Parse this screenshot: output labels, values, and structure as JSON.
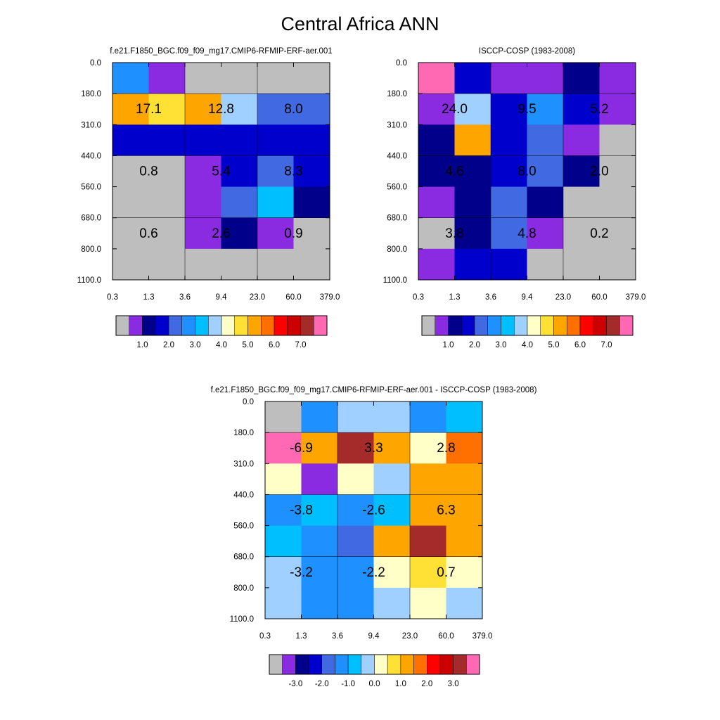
{
  "title": "Central Africa ANN",
  "chart_data": [
    {
      "type": "heatmap",
      "title": "f.e21.F1850_BGC.f09_f09_mg17.CMIP6-RFMIP-ERF-aer.001",
      "x_ticks": [
        "0.3",
        "1.3",
        "3.6",
        "9.4",
        "23.0",
        "60.0",
        "379.0"
      ],
      "y_ticks": [
        "0.0",
        "180.0",
        "310.0",
        "440.0",
        "560.0",
        "680.0",
        "800.0",
        "1100.0"
      ],
      "cell_colors": [
        [
          "#1E90FF",
          "#8A2BE2",
          "#BEBEBE",
          "#BEBEBE",
          "#BEBEBE",
          "#BEBEBE"
        ],
        [
          "#FFA500",
          "#FFE135",
          "#FFA500",
          "#A0D0FF",
          "#4169E1",
          "#4169E1"
        ],
        [
          "#0000CD",
          "#0000CD",
          "#0000CD",
          "#0000CD",
          "#0000CD",
          "#0000CD"
        ],
        [
          "#BEBEBE",
          "#BEBEBE",
          "#8A2BE2",
          "#0000CD",
          "#4169E1",
          "#0000CD"
        ],
        [
          "#BEBEBE",
          "#BEBEBE",
          "#8A2BE2",
          "#4169E1",
          "#00BFFF",
          "#00008B"
        ],
        [
          "#BEBEBE",
          "#BEBEBE",
          "#8A2BE2",
          "#00008B",
          "#8A2BE2",
          "#BEBEBE"
        ],
        [
          "#BEBEBE",
          "#BEBEBE",
          "#BEBEBE",
          "#BEBEBE",
          "#BEBEBE",
          "#BEBEBE"
        ]
      ],
      "annotations": [
        {
          "col": 1,
          "row": 1,
          "text": "17.1"
        },
        {
          "col": 3,
          "row": 1,
          "text": "12.8"
        },
        {
          "col": 5,
          "row": 1,
          "text": "8.0"
        },
        {
          "col": 1,
          "row": 3,
          "text": "0.8"
        },
        {
          "col": 3,
          "row": 3,
          "text": "5.4"
        },
        {
          "col": 5,
          "row": 3,
          "text": "8.3"
        },
        {
          "col": 1,
          "row": 5,
          "text": "0.6"
        },
        {
          "col": 3,
          "row": 5,
          "text": "2.6"
        },
        {
          "col": 5,
          "row": 5,
          "text": "0.9"
        }
      ],
      "colorbar": {
        "colors": [
          "#BEBEBE",
          "#8A2BE2",
          "#00008B",
          "#0000CD",
          "#4169E1",
          "#1E90FF",
          "#00BFFF",
          "#A0D0FF",
          "#FFFFC8",
          "#FFE135",
          "#FFA500",
          "#FF7000",
          "#FF0000",
          "#CD0000",
          "#A52A2A",
          "#FF69B4"
        ],
        "labels": [
          "1.0",
          "2.0",
          "3.0",
          "4.0",
          "5.0",
          "6.0",
          "7.0"
        ]
      }
    },
    {
      "type": "heatmap",
      "title": "ISCCP-COSP (1983-2008)",
      "x_ticks": [
        "0.3",
        "1.3",
        "3.6",
        "9.4",
        "23.0",
        "60.0",
        "379.0"
      ],
      "y_ticks": [
        "0.0",
        "180.0",
        "310.0",
        "440.0",
        "560.0",
        "680.0",
        "800.0",
        "1100.0"
      ],
      "cell_colors": [
        [
          "#FF69B4",
          "#0000CD",
          "#8A2BE2",
          "#8A2BE2",
          "#00008B",
          "#8A2BE2"
        ],
        [
          "#8A2BE2",
          "#A0D0FF",
          "#0000CD",
          "#1E90FF",
          "#0000CD",
          "#8A2BE2"
        ],
        [
          "#00008B",
          "#FFA500",
          "#0000CD",
          "#4169E1",
          "#8A2BE2",
          "#BEBEBE"
        ],
        [
          "#00008B",
          "#00008B",
          "#0000CD",
          "#4169E1",
          "#00008B",
          "#BEBEBE"
        ],
        [
          "#8A2BE2",
          "#00008B",
          "#4169E1",
          "#00008B",
          "#BEBEBE",
          "#BEBEBE"
        ],
        [
          "#BEBEBE",
          "#00008B",
          "#4169E1",
          "#8A2BE2",
          "#BEBEBE",
          "#BEBEBE"
        ],
        [
          "#8A2BE2",
          "#0000CD",
          "#0000CD",
          "#BEBEBE",
          "#BEBEBE",
          "#BEBEBE"
        ]
      ],
      "annotations": [
        {
          "col": 1,
          "row": 1,
          "text": "24.0"
        },
        {
          "col": 3,
          "row": 1,
          "text": "9.5"
        },
        {
          "col": 5,
          "row": 1,
          "text": "5.2"
        },
        {
          "col": 1,
          "row": 3,
          "text": "4.6"
        },
        {
          "col": 3,
          "row": 3,
          "text": "8.0"
        },
        {
          "col": 5,
          "row": 3,
          "text": "2.0"
        },
        {
          "col": 1,
          "row": 5,
          "text": "3.8"
        },
        {
          "col": 3,
          "row": 5,
          "text": "4.8"
        },
        {
          "col": 5,
          "row": 5,
          "text": "0.2"
        }
      ],
      "colorbar": {
        "colors": [
          "#BEBEBE",
          "#8A2BE2",
          "#00008B",
          "#0000CD",
          "#4169E1",
          "#1E90FF",
          "#00BFFF",
          "#A0D0FF",
          "#FFFFC8",
          "#FFE135",
          "#FFA500",
          "#FF7000",
          "#FF0000",
          "#CD0000",
          "#A52A2A",
          "#FF69B4"
        ],
        "labels": [
          "1.0",
          "2.0",
          "3.0",
          "4.0",
          "5.0",
          "6.0",
          "7.0"
        ]
      }
    },
    {
      "type": "heatmap",
      "title": "f.e21.F1850_BGC.f09_f09_mg17.CMIP6-RFMIP-ERF-aer.001 - ISCCP-COSP (1983-2008)",
      "x_ticks": [
        "0.3",
        "1.3",
        "3.6",
        "9.4",
        "23.0",
        "60.0",
        "379.0"
      ],
      "y_ticks": [
        "0.0",
        "180.0",
        "310.0",
        "440.0",
        "560.0",
        "680.0",
        "800.0",
        "1100.0"
      ],
      "cell_colors": [
        [
          "#BEBEBE",
          "#1E90FF",
          "#A0D0FF",
          "#A0D0FF",
          "#1E90FF",
          "#00BFFF"
        ],
        [
          "#FF69B4",
          "#FFA500",
          "#A52A2A",
          "#FFA500",
          "#FFFFC8",
          "#FF7000"
        ],
        [
          "#FFFFC8",
          "#8A2BE2",
          "#FFFFC8",
          "#A0D0FF",
          "#FFA500",
          "#FFA500"
        ],
        [
          "#1E90FF",
          "#00BFFF",
          "#1E90FF",
          "#00BFFF",
          "#FFA500",
          "#FFA500"
        ],
        [
          "#00BFFF",
          "#1E90FF",
          "#4169E1",
          "#FFA500",
          "#A52A2A",
          "#FFA500"
        ],
        [
          "#A0D0FF",
          "#1E90FF",
          "#1E90FF",
          "#FFFFC8",
          "#FFE135",
          "#FFFFC8"
        ],
        [
          "#A0D0FF",
          "#1E90FF",
          "#1E90FF",
          "#A0D0FF",
          "#FFFFC8",
          "#A0D0FF"
        ]
      ],
      "annotations": [
        {
          "col": 1,
          "row": 1,
          "text": "-6.9"
        },
        {
          "col": 3,
          "row": 1,
          "text": "3.3"
        },
        {
          "col": 5,
          "row": 1,
          "text": "2.8"
        },
        {
          "col": 1,
          "row": 3,
          "text": "-3.8"
        },
        {
          "col": 3,
          "row": 3,
          "text": "-2.6"
        },
        {
          "col": 5,
          "row": 3,
          "text": "6.3"
        },
        {
          "col": 1,
          "row": 5,
          "text": "-3.2"
        },
        {
          "col": 3,
          "row": 5,
          "text": "-2.2"
        },
        {
          "col": 5,
          "row": 5,
          "text": "0.7"
        }
      ],
      "colorbar": {
        "colors": [
          "#BEBEBE",
          "#8A2BE2",
          "#00008B",
          "#0000CD",
          "#4169E1",
          "#1E90FF",
          "#00BFFF",
          "#A0D0FF",
          "#FFFFC8",
          "#FFE135",
          "#FFA500",
          "#FF7000",
          "#FF0000",
          "#CD0000",
          "#A52A2A",
          "#FF69B4"
        ],
        "labels": [
          "-3.0",
          "-2.0",
          "-1.0",
          "0.0",
          "1.0",
          "2.0",
          "3.0"
        ]
      }
    }
  ]
}
